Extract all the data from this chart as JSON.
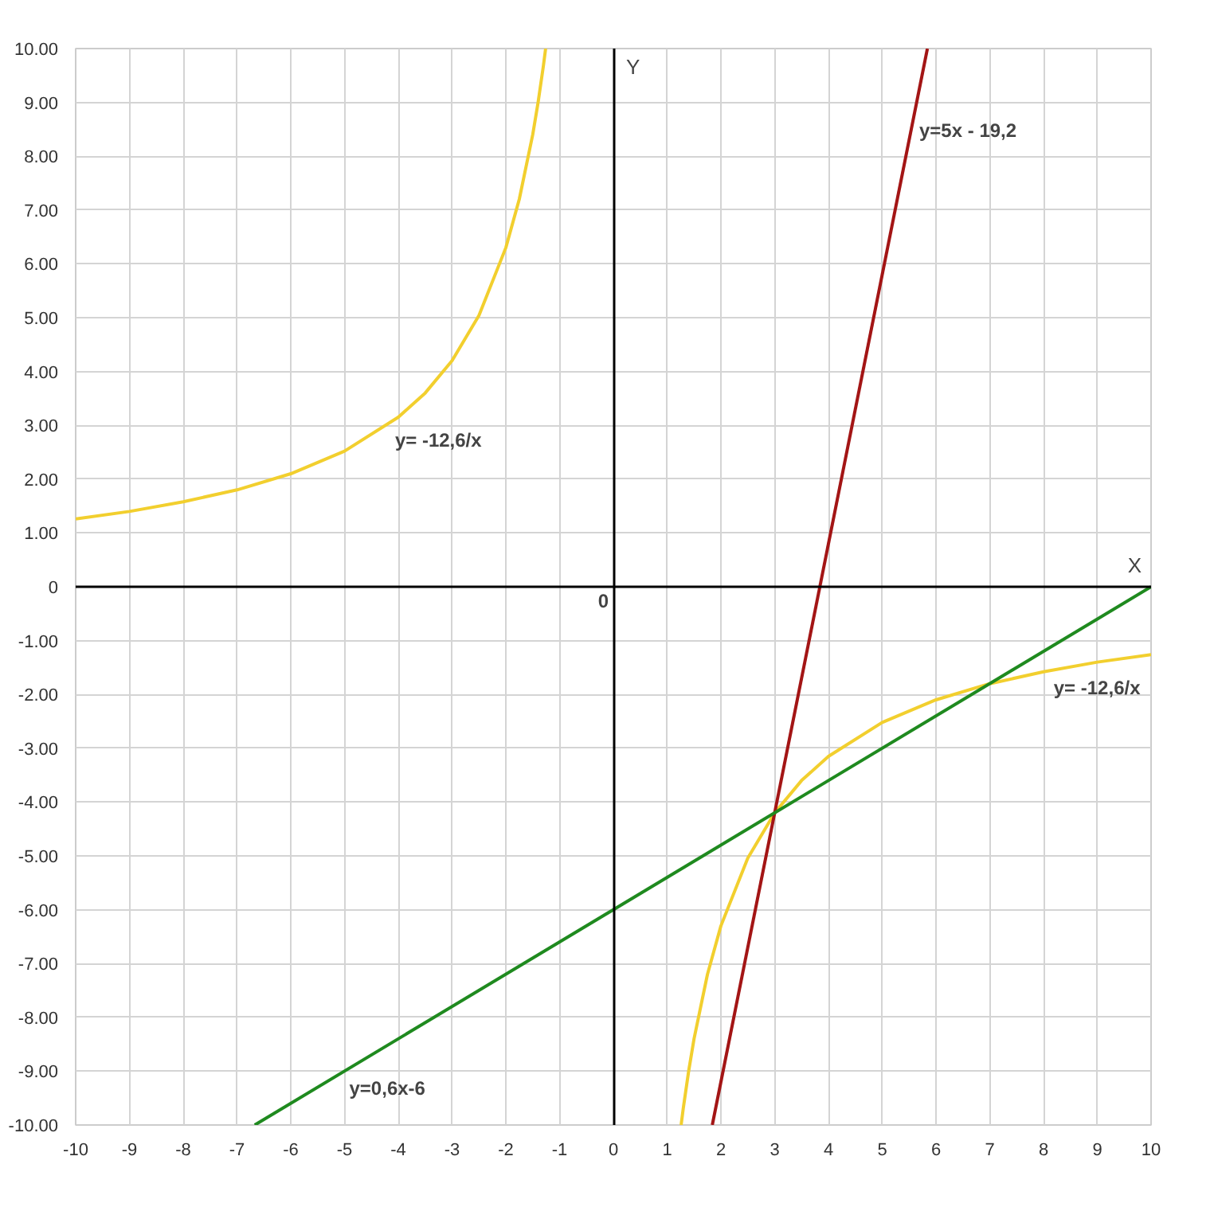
{
  "chart_data": {
    "type": "line",
    "xlim": [
      -10,
      10
    ],
    "ylim": [
      -10,
      10
    ],
    "xticks": [
      -10,
      -9,
      -8,
      -7,
      -6,
      -5,
      -4,
      -3,
      -2,
      -1,
      0,
      1,
      2,
      3,
      4,
      5,
      6,
      7,
      8,
      9,
      10
    ],
    "yticks": [
      {
        "value": 10,
        "label": "10.00"
      },
      {
        "value": 9,
        "label": "9.00"
      },
      {
        "value": 8,
        "label": "8.00"
      },
      {
        "value": 7,
        "label": "7.00"
      },
      {
        "value": 6,
        "label": "6.00"
      },
      {
        "value": 5,
        "label": "5.00"
      },
      {
        "value": 4,
        "label": "4.00"
      },
      {
        "value": 3,
        "label": "3.00"
      },
      {
        "value": 2,
        "label": "2.00"
      },
      {
        "value": 1,
        "label": "1.00"
      },
      0,
      {
        "value": -1,
        "label": "-1.00"
      },
      {
        "value": -2,
        "label": "-2.00"
      },
      {
        "value": -3,
        "label": "-3.00"
      },
      {
        "value": -4,
        "label": "-4.00"
      },
      {
        "value": -5,
        "label": "-5.00"
      },
      {
        "value": -6,
        "label": "-6.00"
      },
      {
        "value": -7,
        "label": "-7.00"
      },
      {
        "value": -8,
        "label": "-8.00"
      },
      {
        "value": -9,
        "label": "-9.00"
      },
      {
        "value": -10,
        "label": "-10.00"
      }
    ],
    "grid": true,
    "marker": "none",
    "line_style": "solid",
    "series": [
      {
        "color": "#f2cf2e",
        "x": [
          -10,
          -9,
          -8,
          -7,
          -6,
          -5,
          -4,
          -3.5,
          -3,
          -2.5,
          -2,
          -1.75,
          -1.5,
          -1.4,
          -1.3,
          -1.26
        ],
        "values": [
          1.26,
          1.4,
          1.58,
          1.8,
          2.1,
          2.52,
          3.15,
          3.6,
          4.2,
          5.04,
          6.3,
          7.2,
          8.4,
          9.0,
          9.69,
          10.0
        ]
      },
      {
        "color": "#f2cf2e",
        "x": [
          1.26,
          1.3,
          1.4,
          1.5,
          1.75,
          2,
          2.5,
          3,
          3.5,
          4,
          5,
          6,
          7,
          8,
          9,
          10
        ],
        "values": [
          -10,
          -9.69,
          -9,
          -8.4,
          -7.2,
          -6.3,
          -5.04,
          -4.2,
          -3.6,
          -3.15,
          -2.52,
          -2.1,
          -1.8,
          -1.58,
          -1.4,
          -1.26
        ]
      },
      {
        "color": "#a31515",
        "x": [
          1.84,
          5.84
        ],
        "values": [
          -10,
          10
        ]
      },
      {
        "color": "#1f8a1f",
        "x": [
          -6.67,
          10
        ],
        "values": [
          -10,
          0
        ]
      }
    ],
    "xlabel": "X",
    "ylabel": "Y",
    "annotations": [
      {
        "text": "y= -12,6/x",
        "x": -4.15,
        "y": 3.04
      },
      {
        "text": "y= -12,6/x",
        "x": 8.1,
        "y": -1.56
      },
      {
        "text": "y=5x - 19,2",
        "x": 5.6,
        "y": 8.8
      },
      {
        "text": "y=0,6x-6",
        "x": -5,
        "y": -9
      },
      "0"
    ]
  }
}
